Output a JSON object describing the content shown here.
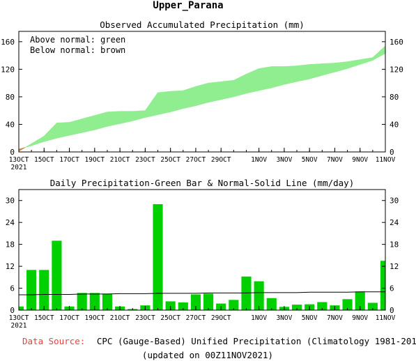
{
  "title": "Upper_Parana",
  "chart_data": [
    {
      "type": "area",
      "title": "Observed Accumulated Precipitation (mm)",
      "legend": [
        "Above normal: green",
        "Below normal: brown"
      ],
      "legend_placement": "top-left",
      "colors": {
        "above": "#90ee90",
        "below": "#cd853f"
      },
      "categories": [
        "13OCT",
        "14OCT",
        "15OCT",
        "16OCT",
        "17OCT",
        "18OCT",
        "19OCT",
        "20OCT",
        "21OCT",
        "22OCT",
        "23OCT",
        "24OCT",
        "25OCT",
        "26OCT",
        "27OCT",
        "28OCT",
        "29OCT",
        "30OCT",
        "31OCT",
        "1NOV",
        "2NOV",
        "3NOV",
        "4NOV",
        "5NOV",
        "6NOV",
        "7NOV",
        "8NOV",
        "9NOV",
        "10NOV",
        "11NOV"
      ],
      "xtick_labels": [
        "13OCT",
        "15OCT",
        "17OCT",
        "19OCT",
        "21OCT",
        "23OCT",
        "25OCT",
        "27OCT",
        "29OCT",
        "1NOV",
        "3NOV",
        "5NOV",
        "7NOV",
        "9NOV",
        "11NOV"
      ],
      "xtick_indices": [
        0,
        2,
        4,
        6,
        8,
        10,
        12,
        14,
        16,
        19,
        21,
        23,
        25,
        27,
        29
      ],
      "year_label": "2021",
      "series": [
        {
          "name": "Observed",
          "values": [
            1,
            12,
            23,
            42,
            43,
            48,
            53,
            58,
            59,
            59,
            60,
            86,
            88,
            89,
            95,
            100,
            102,
            104,
            113,
            121,
            124,
            124,
            125,
            127,
            128,
            129,
            131,
            134,
            137,
            154
          ]
        },
        {
          "name": "Normal",
          "values": [
            4,
            9,
            15,
            20,
            24,
            28,
            32,
            37,
            41,
            45,
            50,
            54,
            58,
            63,
            67,
            72,
            76,
            80,
            85,
            89,
            93,
            98,
            102,
            106,
            111,
            116,
            121,
            127,
            133,
            143
          ]
        }
      ],
      "ylim": [
        0,
        175
      ],
      "yticks": [
        0,
        40,
        80,
        120,
        160
      ]
    },
    {
      "type": "bar",
      "title": "Daily Precipitation-Green Bar & Normal-Solid Line (mm/day)",
      "colors": {
        "bar": "#00d000",
        "line": "#000000"
      },
      "categories": [
        "13OCT",
        "14OCT",
        "15OCT",
        "16OCT",
        "17OCT",
        "18OCT",
        "19OCT",
        "20OCT",
        "21OCT",
        "22OCT",
        "23OCT",
        "24OCT",
        "25OCT",
        "26OCT",
        "27OCT",
        "28OCT",
        "29OCT",
        "30OCT",
        "31OCT",
        "1NOV",
        "2NOV",
        "3NOV",
        "4NOV",
        "5NOV",
        "6NOV",
        "7NOV",
        "8NOV",
        "9NOV",
        "10NOV",
        "11NOV"
      ],
      "xtick_labels": [
        "13OCT",
        "15OCT",
        "17OCT",
        "19OCT",
        "21OCT",
        "23OCT",
        "25OCT",
        "27OCT",
        "29OCT",
        "1NOV",
        "3NOV",
        "5NOV",
        "7NOV",
        "9NOV",
        "11NOV"
      ],
      "xtick_indices": [
        0,
        2,
        4,
        6,
        8,
        10,
        12,
        14,
        16,
        19,
        21,
        23,
        25,
        27,
        29
      ],
      "year_label": "2021",
      "series": [
        {
          "name": "Daily Precipitation",
          "values": [
            1,
            11,
            11,
            19,
            1,
            4.7,
            4.7,
            4.5,
            1,
            0.3,
            1.3,
            29,
            2.4,
            2.1,
            4.3,
            4.5,
            1.8,
            2.8,
            9.2,
            7.9,
            3.3,
            0.9,
            1.5,
            1.6,
            2.2,
            1.3,
            3,
            5.1,
            2,
            13.5
          ]
        },
        {
          "name": "Normal",
          "values": [
            4.2,
            4.2,
            4.3,
            4.3,
            4.3,
            4.4,
            4.4,
            4.4,
            4.5,
            4.5,
            4.5,
            4.6,
            4.6,
            4.6,
            4.6,
            4.7,
            4.7,
            4.7,
            4.7,
            4.8,
            4.8,
            4.8,
            4.8,
            4.9,
            4.9,
            4.9,
            4.9,
            5,
            5,
            5
          ]
        }
      ],
      "ylim": [
        0,
        33
      ],
      "yticks": [
        0,
        6,
        12,
        18,
        24,
        30
      ]
    }
  ],
  "footer": {
    "source_label": "Data Source:",
    "source_text": "CPC (Gauge-Based) Unified Precipitation (Climatology 1981-2010)",
    "updated": "(updated on 00Z11NOV2021)"
  }
}
